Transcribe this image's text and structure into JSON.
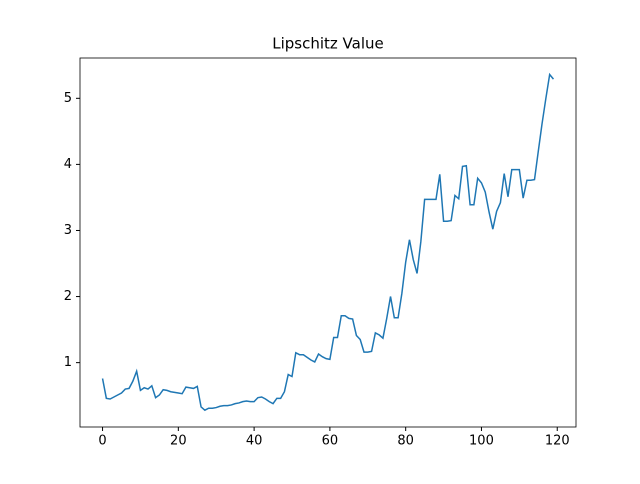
{
  "chart_data": {
    "type": "line",
    "title": "Lipschitz Value",
    "x": [
      0,
      1,
      2,
      3,
      4,
      5,
      6,
      7,
      8,
      9,
      10,
      11,
      12,
      13,
      14,
      15,
      16,
      17,
      18,
      19,
      20,
      21,
      22,
      23,
      24,
      25,
      26,
      27,
      28,
      29,
      30,
      31,
      32,
      33,
      34,
      35,
      36,
      37,
      38,
      39,
      40,
      41,
      42,
      43,
      44,
      45,
      46,
      47,
      48,
      49,
      50,
      51,
      52,
      53,
      54,
      55,
      56,
      57,
      58,
      59,
      60,
      61,
      62,
      63,
      64,
      65,
      66,
      67,
      68,
      69,
      70,
      71,
      72,
      73,
      74,
      75,
      76,
      77,
      78,
      79,
      80,
      81,
      82,
      83,
      84,
      85,
      86,
      87,
      88,
      89,
      90,
      91,
      92,
      93,
      94,
      95,
      96,
      97,
      98,
      99,
      100,
      101,
      102,
      103,
      104,
      105,
      106,
      107,
      108,
      109,
      110,
      111,
      112,
      113,
      114,
      115,
      116,
      117,
      118,
      119
    ],
    "series": [
      {
        "name": "Lipschitz Value",
        "color": "#1f77b4",
        "values": [
          0.76,
          0.46,
          0.45,
          0.48,
          0.51,
          0.54,
          0.6,
          0.61,
          0.72,
          0.87,
          0.58,
          0.62,
          0.6,
          0.65,
          0.47,
          0.51,
          0.59,
          0.58,
          0.56,
          0.55,
          0.54,
          0.53,
          0.63,
          0.62,
          0.61,
          0.64,
          0.33,
          0.28,
          0.31,
          0.31,
          0.32,
          0.34,
          0.35,
          0.35,
          0.36,
          0.38,
          0.39,
          0.41,
          0.42,
          0.41,
          0.41,
          0.47,
          0.48,
          0.45,
          0.41,
          0.38,
          0.46,
          0.46,
          0.56,
          0.82,
          0.79,
          1.15,
          1.12,
          1.12,
          1.08,
          1.04,
          1.01,
          1.13,
          1.09,
          1.06,
          1.05,
          1.38,
          1.38,
          1.71,
          1.71,
          1.67,
          1.66,
          1.41,
          1.35,
          1.16,
          1.16,
          1.17,
          1.45,
          1.42,
          1.37,
          1.67,
          2.0,
          1.68,
          1.68,
          2.05,
          2.52,
          2.86,
          2.56,
          2.35,
          2.83,
          3.47,
          3.47,
          3.47,
          3.47,
          3.85,
          3.14,
          3.14,
          3.15,
          3.53,
          3.48,
          3.97,
          3.98,
          3.39,
          3.39,
          3.79,
          3.72,
          3.58,
          3.28,
          3.02,
          3.29,
          3.42,
          3.86,
          3.51,
          3.92,
          3.92,
          3.92,
          3.49,
          3.76,
          3.76,
          3.77,
          4.2,
          4.62,
          5.0,
          5.36,
          5.29
        ]
      }
    ],
    "xlim": [
      -5.95,
      124.95
    ],
    "xticks": [
      0,
      20,
      40,
      60,
      80,
      100,
      120
    ],
    "ylim": [
      0.026,
      5.61
    ],
    "yticks": [
      1,
      2,
      3,
      4,
      5
    ],
    "grid": false
  }
}
